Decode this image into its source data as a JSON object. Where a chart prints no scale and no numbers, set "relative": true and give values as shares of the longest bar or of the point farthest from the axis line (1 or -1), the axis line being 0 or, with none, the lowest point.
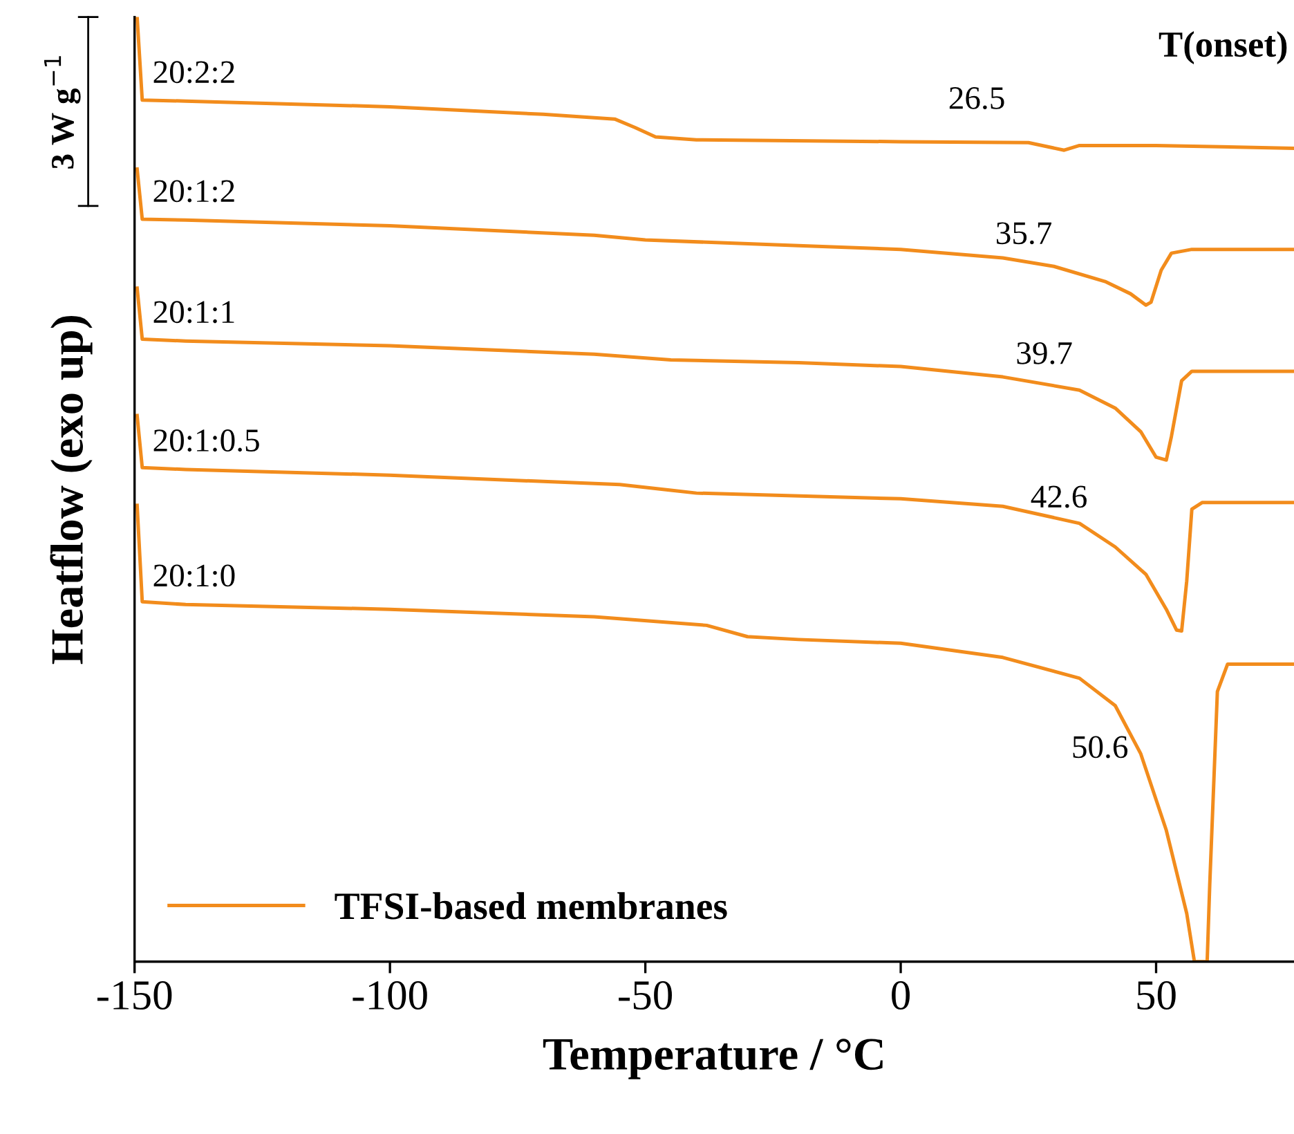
{
  "chart_data": {
    "type": "line",
    "relative": true,
    "xlabel": "Temperature / °C",
    "ylabel": "Heatflow (exo up)",
    "xlim": [
      -150,
      77
    ],
    "xticks": [
      -150,
      -100,
      -50,
      0,
      50
    ],
    "legend_title": "TFSI-based membranes",
    "grid": false,
    "marker": "none",
    "line_style": "solid",
    "tick_labels": "x",
    "annotations": [
      "T(onset)",
      "3 W g$^{−1}$",
      {
        "text": "26.5",
        "x": 26.5,
        "y": 0.867
      },
      {
        "text": "35.7",
        "x": 35.7,
        "y": 0.724
      },
      {
        "text": "39.7",
        "x": 39.7,
        "y": 0.597
      },
      {
        "text": "42.6",
        "x": 42.6,
        "y": 0.445
      },
      {
        "text": "50.6",
        "x": 50.6,
        "y": 0.18
      }
    ],
    "series": [
      {
        "name": "20:2:2",
        "color": "#f28c1c",
        "x": [
          -149.5,
          -148.5,
          -140,
          -100,
          -70,
          -56,
          -52,
          -48,
          -40,
          0,
          25,
          32,
          35,
          50,
          77
        ],
        "values": [
          1.0,
          0.912,
          0.911,
          0.905,
          0.897,
          0.892,
          0.883,
          0.873,
          0.87,
          0.868,
          0.867,
          0.859,
          0.864,
          0.864,
          0.861
        ]
      },
      {
        "name": "20:1:2",
        "color": "#f28c1c",
        "x": [
          -149.5,
          -148.5,
          -140,
          -100,
          -60,
          -50,
          -20,
          0,
          20,
          30,
          40,
          45,
          48,
          49,
          51,
          53,
          57,
          77
        ],
        "values": [
          0.839,
          0.786,
          0.785,
          0.779,
          0.769,
          0.764,
          0.758,
          0.754,
          0.745,
          0.736,
          0.72,
          0.707,
          0.695,
          0.698,
          0.732,
          0.75,
          0.754,
          0.754
        ]
      },
      {
        "name": "20:1:1",
        "color": "#f28c1c",
        "x": [
          -149.5,
          -148.5,
          -140,
          -100,
          -60,
          -45,
          -20,
          0,
          20,
          35,
          42,
          47,
          50,
          52,
          53,
          55,
          57,
          77
        ],
        "values": [
          0.713,
          0.659,
          0.657,
          0.652,
          0.643,
          0.637,
          0.634,
          0.63,
          0.619,
          0.605,
          0.586,
          0.561,
          0.534,
          0.531,
          0.556,
          0.615,
          0.625,
          0.625
        ]
      },
      {
        "name": "20:1:0.5",
        "color": "#f28c1c",
        "x": [
          -149.5,
          -148.5,
          -140,
          -100,
          -55,
          -45,
          -40,
          0,
          20,
          35,
          42,
          48,
          52,
          54,
          55,
          56,
          57,
          59,
          77
        ],
        "values": [
          0.578,
          0.523,
          0.521,
          0.515,
          0.505,
          0.499,
          0.496,
          0.49,
          0.482,
          0.464,
          0.439,
          0.41,
          0.373,
          0.351,
          0.35,
          0.403,
          0.479,
          0.486,
          0.486
        ]
      },
      {
        "name": "20:1:0",
        "color": "#f28c1c",
        "x": [
          -149.5,
          -148.5,
          -140,
          -100,
          -60,
          -38,
          -30,
          -20,
          0,
          20,
          35,
          42,
          47,
          52,
          56,
          57.5,
          60,
          60.5,
          62,
          64,
          77
        ],
        "values": [
          0.483,
          0.381,
          0.378,
          0.373,
          0.365,
          0.356,
          0.344,
          0.341,
          0.337,
          0.322,
          0.3,
          0.271,
          0.22,
          0.139,
          0.051,
          0.0,
          0.0,
          0.081,
          0.286,
          0.315,
          0.315
        ]
      }
    ]
  }
}
